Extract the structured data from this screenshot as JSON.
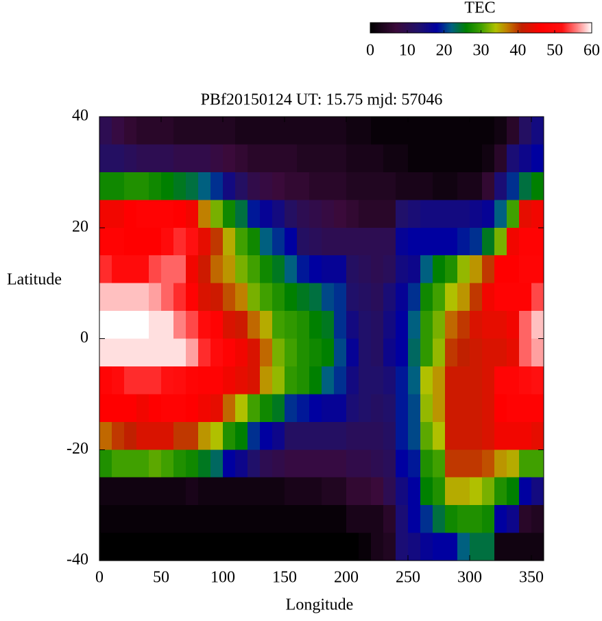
{
  "chart_data": {
    "type": "heatmap",
    "title": "PBf20150124  UT: 15.75  mjd: 57046",
    "x_label": "Longitude",
    "y_label": "Latitude",
    "colorbar_label": "TEC",
    "x": [
      5,
      15,
      25,
      35,
      45,
      55,
      65,
      75,
      85,
      95,
      105,
      115,
      125,
      135,
      145,
      155,
      165,
      175,
      185,
      195,
      205,
      215,
      225,
      235,
      245,
      255,
      265,
      275,
      285,
      295,
      305,
      315,
      325,
      335,
      345,
      355
    ],
    "y": [
      37.5,
      32.5,
      27.5,
      22.5,
      17.5,
      12.5,
      7.5,
      2.5,
      -2.5,
      -7.5,
      -12.5,
      -17.5,
      -22.5,
      -27.5,
      -32.5,
      -37.5
    ],
    "z": [
      [
        10,
        8,
        6,
        5,
        5,
        5,
        4,
        4,
        4,
        4,
        4,
        3,
        3,
        3,
        3,
        3,
        3,
        3,
        3,
        3,
        2,
        2,
        1,
        1,
        1,
        1,
        1,
        1,
        1,
        1,
        1,
        1,
        2,
        5,
        12,
        15
      ],
      [
        12,
        12,
        11,
        10,
        10,
        10,
        9,
        9,
        9,
        8,
        7,
        6,
        5,
        5,
        5,
        5,
        4,
        4,
        4,
        4,
        3,
        3,
        3,
        2,
        2,
        1,
        1,
        1,
        1,
        1,
        1,
        2,
        5,
        14,
        16,
        18
      ],
      [
        27,
        27,
        28,
        28,
        27,
        26,
        25,
        24,
        22,
        20,
        15,
        12,
        9,
        8,
        7,
        6,
        6,
        5,
        5,
        5,
        4,
        4,
        4,
        4,
        3,
        3,
        3,
        2,
        2,
        3,
        3,
        6,
        14,
        20,
        24,
        26
      ],
      [
        45,
        45,
        46,
        47,
        47,
        47,
        46,
        45,
        37,
        32,
        27,
        24,
        19,
        17,
        15,
        12,
        10,
        9,
        8,
        7,
        6,
        5,
        5,
        5,
        13,
        14,
        15,
        15,
        15,
        15,
        16,
        17,
        22,
        30,
        44,
        45
      ],
      [
        47,
        47,
        46,
        46,
        46,
        50,
        53,
        52,
        44,
        40,
        35,
        30,
        27,
        22,
        20,
        18,
        12,
        11,
        10,
        10,
        10,
        10,
        10,
        10,
        17,
        18,
        18,
        18,
        18,
        19,
        20,
        25,
        32,
        45,
        47,
        47
      ],
      [
        53,
        50,
        50,
        50,
        54,
        55,
        55,
        45,
        42,
        38,
        36,
        32,
        30,
        27,
        25,
        22,
        19,
        18,
        17,
        17,
        12,
        11,
        10,
        11,
        15,
        16,
        22,
        26,
        28,
        33,
        36,
        40,
        46,
        46,
        48,
        48
      ],
      [
        58,
        58,
        58,
        58,
        57,
        55,
        53,
        47,
        43,
        42,
        39,
        37,
        32,
        30,
        28,
        26,
        25,
        24,
        21,
        20,
        13,
        12,
        11,
        14,
        17,
        20,
        27,
        30,
        34,
        36,
        40,
        45,
        47,
        47,
        47,
        54
      ],
      [
        60,
        60,
        60,
        60,
        59,
        59,
        56,
        54,
        50,
        47,
        43,
        42,
        38,
        35,
        30,
        29,
        28,
        26,
        25,
        20,
        15,
        13,
        12,
        15,
        18,
        22,
        29,
        32,
        38,
        40,
        43,
        44,
        44,
        45,
        55,
        58
      ],
      [
        59,
        59,
        59,
        59,
        59,
        59,
        59,
        57,
        53,
        50,
        47,
        45,
        43,
        38,
        32,
        30,
        28,
        27,
        26,
        21,
        17,
        13,
        12,
        16,
        18,
        23,
        29,
        33,
        40,
        41,
        42,
        43,
        43,
        44,
        55,
        57
      ],
      [
        48,
        50,
        53,
        53,
        53,
        52,
        51,
        48,
        47,
        47,
        45,
        44,
        43,
        36,
        33,
        29,
        28,
        26,
        22,
        20,
        15,
        13,
        13,
        14,
        19,
        22,
        34,
        36,
        42,
        42,
        42,
        43,
        48,
        48,
        50,
        52
      ],
      [
        46,
        46,
        46,
        45,
        46,
        47,
        47,
        46,
        45,
        44,
        38,
        34,
        30,
        27,
        25,
        20,
        19,
        18,
        17,
        17,
        14,
        13,
        12,
        13,
        19,
        21,
        33,
        36,
        42,
        42,
        42,
        43,
        46,
        47,
        47,
        47
      ],
      [
        38,
        40,
        41,
        43,
        43,
        43,
        40,
        40,
        36,
        34,
        28,
        26,
        20,
        18,
        16,
        12,
        12,
        12,
        12,
        12,
        11,
        11,
        11,
        12,
        19,
        21,
        31,
        34,
        42,
        42,
        42,
        43,
        45,
        45,
        45,
        44
      ],
      [
        28,
        30,
        30,
        30,
        31,
        30,
        28,
        27,
        25,
        23,
        18,
        16,
        13,
        10,
        9,
        8,
        8,
        8,
        8,
        8,
        9,
        9,
        10,
        11,
        18,
        19,
        28,
        30,
        40,
        40,
        40,
        39,
        36,
        35,
        30,
        30
      ],
      [
        2,
        2,
        2,
        2,
        2,
        2,
        2,
        3,
        2,
        2,
        2,
        2,
        2,
        2,
        2,
        3,
        3,
        3,
        4,
        4,
        6,
        6,
        7,
        10,
        15,
        18,
        26,
        28,
        35,
        35,
        34,
        32,
        28,
        26,
        18,
        15
      ],
      [
        1,
        1,
        1,
        1,
        1,
        1,
        1,
        1,
        1,
        1,
        1,
        1,
        1,
        1,
        1,
        1,
        1,
        1,
        1,
        1,
        3,
        3,
        3,
        5,
        14,
        18,
        20,
        24,
        27,
        28,
        28,
        27,
        18,
        16,
        5,
        4
      ],
      [
        0,
        0,
        0,
        0,
        0,
        0,
        0,
        0,
        0,
        0,
        0,
        0,
        0,
        0,
        0,
        0,
        0,
        0,
        0,
        0,
        0,
        1,
        3,
        4,
        14,
        15,
        17,
        18,
        18,
        22,
        24,
        24,
        2,
        2,
        2,
        2
      ]
    ],
    "xlim": [
      0,
      360
    ],
    "ylim": [
      -40,
      40
    ],
    "xticks": [
      0,
      50,
      100,
      150,
      200,
      250,
      300,
      350
    ],
    "yticks": [
      -40,
      -20,
      0,
      20,
      40
    ],
    "zlim": [
      0,
      60
    ],
    "zticks": [
      0,
      10,
      20,
      30,
      40,
      50,
      60
    ],
    "colorscale": [
      [
        0,
        "#000000"
      ],
      [
        7,
        "#3a0a3a"
      ],
      [
        13,
        "#20106a"
      ],
      [
        18,
        "#0000a0"
      ],
      [
        22,
        "#006080"
      ],
      [
        26,
        "#008000"
      ],
      [
        30,
        "#40a000"
      ],
      [
        34,
        "#b0c000"
      ],
      [
        37,
        "#c08000"
      ],
      [
        41,
        "#c02000"
      ],
      [
        46,
        "#ff0000"
      ],
      [
        52,
        "#ff1010"
      ],
      [
        56,
        "#ff8080"
      ],
      [
        60,
        "#ffffff"
      ]
    ]
  }
}
